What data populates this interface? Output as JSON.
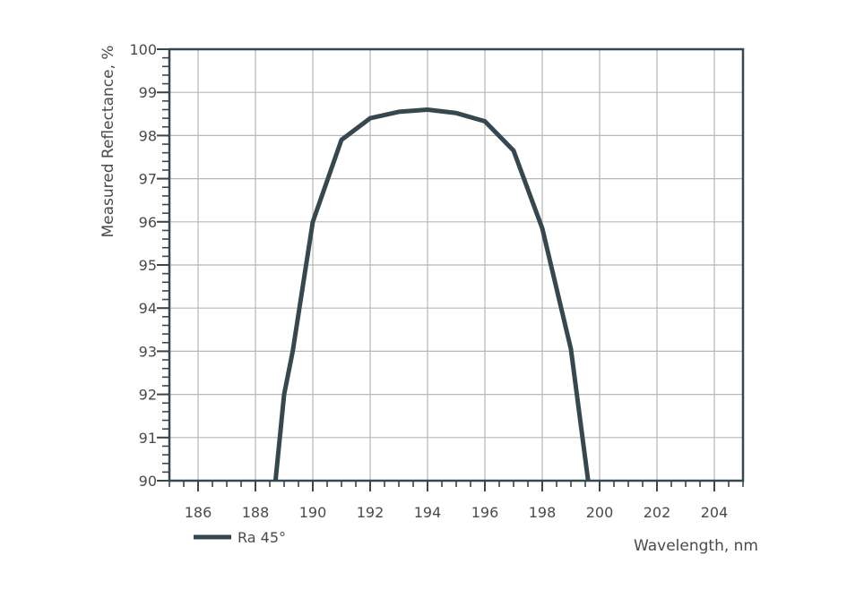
{
  "chart_data": {
    "type": "line",
    "xlabel": "Wavelength, nm",
    "ylabel": "Measured Reflectance, %",
    "xlim": [
      185,
      205
    ],
    "ylim": [
      90,
      100
    ],
    "x_ticks": [
      "186",
      "188",
      "190",
      "192",
      "194",
      "196",
      "198",
      "200",
      "202",
      "204"
    ],
    "y_ticks": [
      "90",
      "91",
      "92",
      "93",
      "94",
      "95",
      "96",
      "97",
      "98",
      "99",
      "100"
    ],
    "grid": true,
    "legend_position": "bottom-left",
    "series": [
      {
        "name": "Ra 45°",
        "color": "#37474f",
        "x": [
          188.7,
          189.0,
          189.3,
          190.0,
          191.0,
          192.0,
          193.0,
          194.0,
          195.0,
          196.0,
          197.0,
          198.0,
          199.0,
          199.6
        ],
        "y": [
          90.0,
          92.0,
          93.0,
          96.0,
          97.9,
          98.4,
          98.55,
          98.6,
          98.52,
          98.33,
          97.65,
          95.85,
          93.05,
          90.0
        ]
      }
    ]
  },
  "colors": {
    "axis": "#37474f",
    "grid": "#b7b7b7",
    "text": "#4a4a4a"
  }
}
